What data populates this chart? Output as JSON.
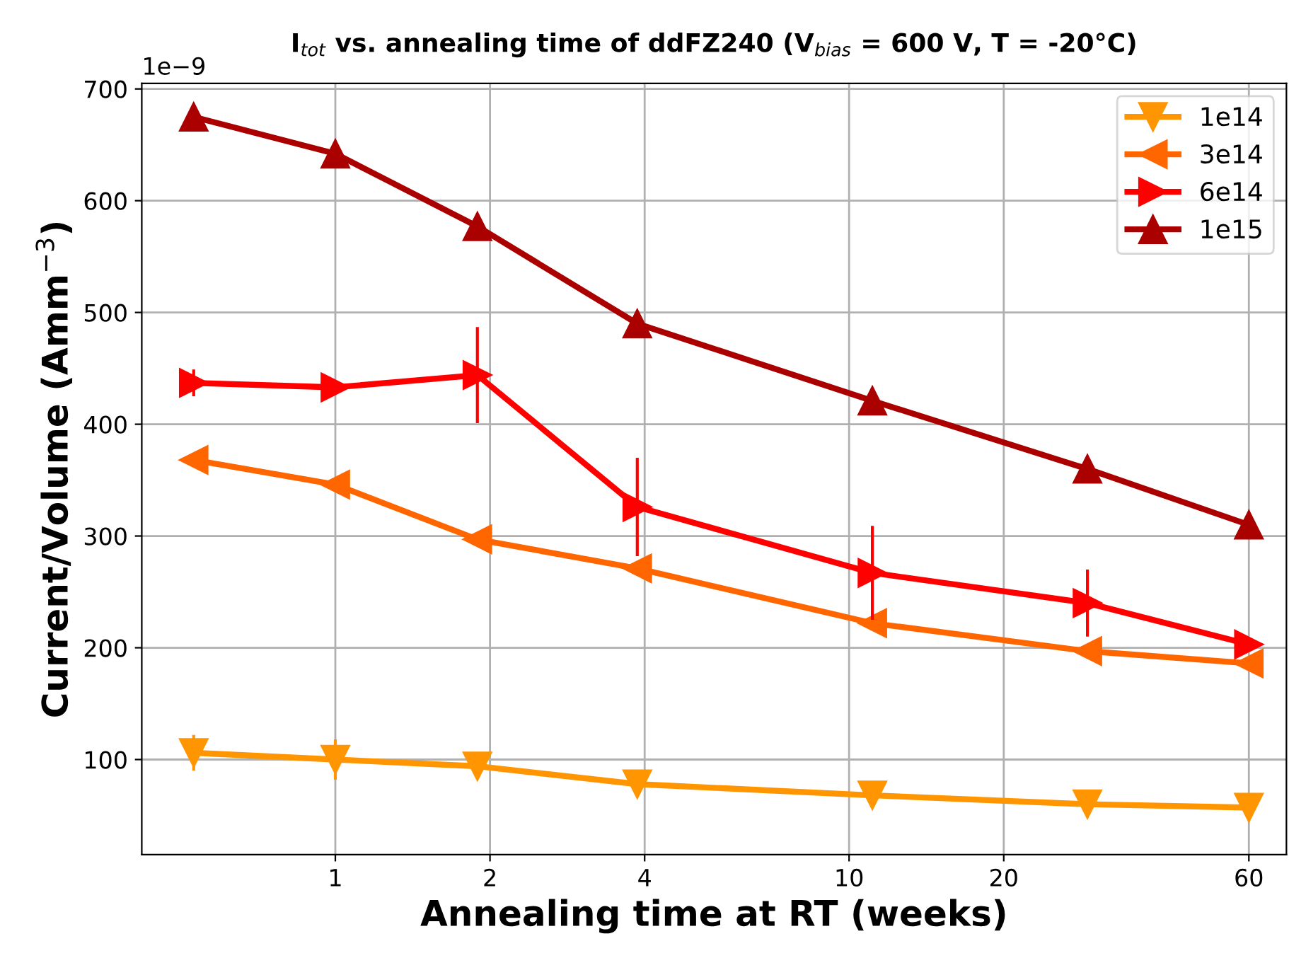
{
  "chart_data": {
    "type": "line",
    "title": "I$_{tot}$ vs. annealing time of ddFZ240 (V$_{bias}$ = 600 V, T = -20°C)",
    "xlabel": "Annealing time at RT (weeks)",
    "ylabel": "Current/Volume (Amm$^{−3}$)",
    "annotations": [
      "1e−9"
    ],
    "x": [
      0.53,
      1,
      1.89,
      3.87,
      11.1,
      29.1,
      60
    ],
    "series": [
      {
        "name": "1e14",
        "color": "#ff9500",
        "marker": "triangle_down",
        "values": [
          106,
          100,
          94,
          78,
          68,
          60,
          57
        ],
        "errors": [
          16,
          18,
          null,
          null,
          null,
          null,
          null
        ]
      },
      {
        "name": "3e14",
        "color": "#ff6600",
        "marker": "triangle_left",
        "values": [
          368,
          346,
          297,
          271,
          222,
          197,
          186
        ]
      },
      {
        "name": "6e14",
        "color": "#ff0000",
        "marker": "triangle_right",
        "values": [
          437,
          433,
          444,
          326,
          267,
          240,
          203
        ],
        "errors": [
          12,
          null,
          43,
          44,
          42,
          30,
          null
        ]
      },
      {
        "name": "1e15",
        "color": "#aa0000",
        "marker": "triangle",
        "values": [
          675,
          642,
          577,
          490,
          421,
          360,
          310
        ]
      }
    ],
    "log": "x",
    "xlim": [
      0.42,
      71
    ],
    "xticks": [
      1,
      2,
      4,
      10,
      20,
      60
    ],
    "ylim": [
      15,
      705
    ],
    "yticks": [
      100,
      200,
      300,
      400,
      500,
      600,
      700
    ],
    "grid": true,
    "legend": "top right",
    "line_style": "solid"
  }
}
